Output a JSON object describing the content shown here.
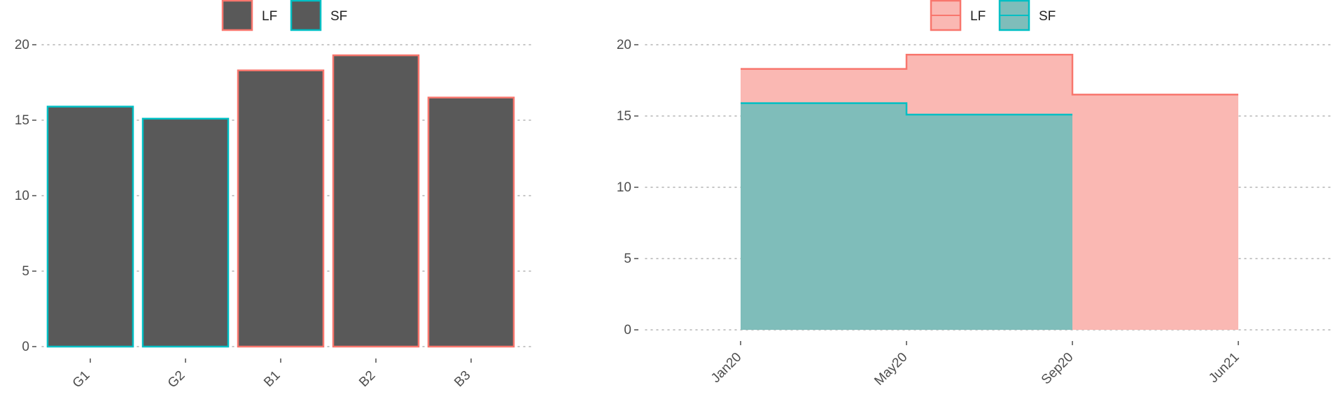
{
  "chart_data": [
    {
      "type": "bar",
      "categories": [
        "G1",
        "G2",
        "B1",
        "B2",
        "B3"
      ],
      "values": [
        15.9,
        15.1,
        18.3,
        19.3,
        16.5
      ],
      "group": [
        "SF",
        "SF",
        "LF",
        "LF",
        "LF"
      ],
      "bar_fill": "#595959",
      "legend": [
        "LF",
        "SF"
      ],
      "legend_position": "top",
      "ylim": [
        0,
        20
      ],
      "yticks": [
        0,
        5,
        10,
        15,
        20
      ],
      "grid": "horizontal dotted"
    },
    {
      "type": "area",
      "step": true,
      "x_ticks": [
        "Jan20",
        "May20",
        "Sep20",
        "Jun21"
      ],
      "series": [
        {
          "name": "LF",
          "x": [
            "Jan20",
            "May20",
            "Sep20",
            "Jun21"
          ],
          "values": [
            18.3,
            19.3,
            16.5,
            16.5
          ]
        },
        {
          "name": "SF",
          "x": [
            "Jan20",
            "May20",
            "Sep20"
          ],
          "values": [
            15.9,
            15.1,
            15.1
          ]
        }
      ],
      "legend": [
        "LF",
        "SF"
      ],
      "legend_position": "top",
      "ylim": [
        0,
        20
      ],
      "yticks": [
        0,
        5,
        10,
        15,
        20
      ],
      "grid": "horizontal dotted"
    }
  ],
  "colors": {
    "LF": "#f8766d",
    "SF": "#00bfc4",
    "LF_fill": "#fab8b3",
    "SF_fill": "#7fbdba",
    "grid": "#b3b3b3",
    "text": "#4d4d4d"
  }
}
